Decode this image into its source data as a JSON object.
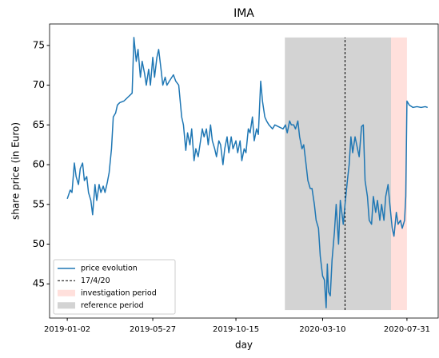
{
  "chart_data": {
    "type": "line",
    "title": "IMA",
    "x_label": "day",
    "y_label": "share price (in Euro)",
    "xlim": [
      "2018-12-03",
      "2020-09-22"
    ],
    "xticks": [
      "2019-01-02",
      "2019-05-27",
      "2019-10-15",
      "2020-03-10",
      "2020-07-31"
    ],
    "ylim": [
      40.7,
      77.7
    ],
    "yticks": [
      45,
      50,
      55,
      60,
      65,
      70,
      75
    ],
    "legend_loc": "lower left",
    "series": [
      {
        "name": "price evolution",
        "color": "#1f77b4",
        "x": [
          "2019-01-02",
          "2019-01-07",
          "2019-01-10",
          "2019-01-14",
          "2019-01-17",
          "2019-01-21",
          "2019-01-24",
          "2019-01-28",
          "2019-01-31",
          "2019-02-04",
          "2019-02-07",
          "2019-02-11",
          "2019-02-14",
          "2019-02-18",
          "2019-02-21",
          "2019-02-25",
          "2019-02-28",
          "2019-03-04",
          "2019-03-07",
          "2019-03-11",
          "2019-03-14",
          "2019-03-18",
          "2019-03-21",
          "2019-03-25",
          "2019-03-28",
          "2019-04-01",
          "2019-04-08",
          "2019-04-15",
          "2019-04-22",
          "2019-04-25",
          "2019-04-29",
          "2019-05-02",
          "2019-05-06",
          "2019-05-09",
          "2019-05-13",
          "2019-05-16",
          "2019-05-20",
          "2019-05-23",
          "2019-05-27",
          "2019-05-30",
          "2019-06-03",
          "2019-06-06",
          "2019-06-10",
          "2019-06-13",
          "2019-06-17",
          "2019-06-20",
          "2019-06-24",
          "2019-07-01",
          "2019-07-05",
          "2019-07-10",
          "2019-07-15",
          "2019-07-18",
          "2019-07-22",
          "2019-07-25",
          "2019-07-29",
          "2019-08-01",
          "2019-08-05",
          "2019-08-08",
          "2019-08-12",
          "2019-08-15",
          "2019-08-19",
          "2019-08-22",
          "2019-08-26",
          "2019-08-29",
          "2019-09-02",
          "2019-09-05",
          "2019-09-09",
          "2019-09-12",
          "2019-09-16",
          "2019-09-19",
          "2019-09-23",
          "2019-09-26",
          "2019-09-30",
          "2019-10-03",
          "2019-10-07",
          "2019-10-10",
          "2019-10-15",
          "2019-10-18",
          "2019-10-22",
          "2019-10-25",
          "2019-10-29",
          "2019-11-01",
          "2019-11-05",
          "2019-11-08",
          "2019-11-12",
          "2019-11-15",
          "2019-11-19",
          "2019-11-22",
          "2019-11-26",
          "2019-11-29",
          "2019-12-03",
          "2019-12-06",
          "2019-12-10",
          "2019-12-16",
          "2019-12-20",
          "2020-01-03",
          "2020-01-07",
          "2020-01-10",
          "2020-01-14",
          "2020-01-17",
          "2020-01-21",
          "2020-01-24",
          "2020-01-28",
          "2020-01-31",
          "2020-02-04",
          "2020-02-07",
          "2020-02-11",
          "2020-02-14",
          "2020-02-18",
          "2020-02-21",
          "2020-02-25",
          "2020-02-28",
          "2020-03-03",
          "2020-03-06",
          "2020-03-10",
          "2020-03-13",
          "2020-03-16",
          "2020-03-18",
          "2020-03-20",
          "2020-03-23",
          "2020-03-26",
          "2020-03-30",
          "2020-04-02",
          "2020-04-06",
          "2020-04-09",
          "2020-04-14",
          "2020-04-17",
          "2020-04-21",
          "2020-04-24",
          "2020-04-27",
          "2020-04-30",
          "2020-05-04",
          "2020-05-11",
          "2020-05-15",
          "2020-05-18",
          "2020-05-21",
          "2020-05-25",
          "2020-05-28",
          "2020-06-01",
          "2020-06-04",
          "2020-06-08",
          "2020-06-11",
          "2020-06-15",
          "2020-06-18",
          "2020-06-22",
          "2020-06-25",
          "2020-06-29",
          "2020-07-02",
          "2020-07-06",
          "2020-07-09",
          "2020-07-13",
          "2020-07-16",
          "2020-07-20",
          "2020-07-23",
          "2020-07-27",
          "2020-07-29",
          "2020-07-31",
          "2020-08-04",
          "2020-08-10",
          "2020-08-17",
          "2020-08-24",
          "2020-08-31",
          "2020-09-04"
        ],
        "values": [
          55.7,
          56.8,
          56.5,
          60.2,
          58.5,
          57.5,
          59.5,
          60.2,
          58,
          58.5,
          56.5,
          55.5,
          53.7,
          57.5,
          55.5,
          57.5,
          56.5,
          57.3,
          56.5,
          57.8,
          59,
          62,
          66,
          66.5,
          67.5,
          67.8,
          68,
          68.5,
          69,
          76,
          73,
          74.5,
          71,
          73,
          71.5,
          70,
          72,
          70,
          73.5,
          71,
          73.5,
          74.5,
          72,
          70,
          71,
          70,
          70.5,
          71.3,
          70.5,
          70,
          66,
          65,
          61.8,
          64,
          62.5,
          64.5,
          60.5,
          62,
          61,
          62.5,
          64.5,
          63.5,
          64.5,
          62.5,
          65,
          63,
          62,
          61,
          63,
          62.5,
          60,
          62,
          63.5,
          61.5,
          63.5,
          62,
          63,
          61.5,
          63,
          60.5,
          62,
          61.5,
          64.5,
          64,
          66,
          63,
          64.5,
          63.8,
          70.5,
          68,
          66,
          65.5,
          65,
          64.5,
          65,
          64.5,
          65,
          64,
          65.5,
          65,
          65,
          64.5,
          65.5,
          63.5,
          62,
          62.5,
          60,
          58,
          57,
          57,
          55,
          53,
          52,
          48.5,
          46,
          45.5,
          42,
          47.5,
          44,
          43.5,
          48,
          51.5,
          55,
          50,
          55.5,
          52.5,
          55,
          58,
          60,
          63.5,
          61.5,
          63.5,
          61,
          64.8,
          65,
          58,
          56,
          53,
          52.5,
          56,
          54,
          55.5,
          53,
          55,
          53,
          56,
          57.5,
          55,
          52,
          51,
          54,
          52.5,
          53,
          52,
          53,
          56,
          68,
          67.5,
          67.2,
          67.3,
          67.2,
          67.3,
          67.2
        ]
      }
    ],
    "vline": {
      "name": "17/4/20",
      "x": "2020-04-17",
      "color": "#000000"
    },
    "spans": [
      {
        "name": "investigation period",
        "start": "2020-07-04",
        "end": "2020-07-31",
        "color": "#ffe0dc"
      },
      {
        "name": "reference period",
        "start": "2020-01-06",
        "end": "2020-07-04",
        "color": "#d3d3d3"
      }
    ],
    "span_ylim": [
      41.7,
      76
    ]
  }
}
